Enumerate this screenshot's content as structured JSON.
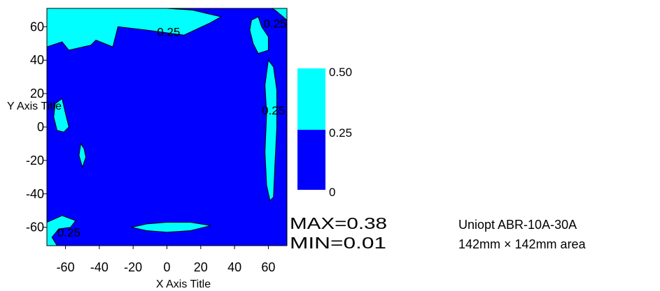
{
  "chart_data": {
    "type": "contour",
    "xlabel": "X Axis Title",
    "ylabel": "Y Axis Title",
    "xlim": [
      -71,
      71
    ],
    "ylim": [
      -71,
      71
    ],
    "x_ticks": [
      -60,
      -40,
      -20,
      0,
      20,
      40,
      60
    ],
    "y_ticks": [
      60,
      40,
      20,
      0,
      -20,
      -40,
      -60
    ],
    "x_tick_labels": [
      "-60",
      "-40",
      "-20",
      "0",
      "20",
      "40",
      "60"
    ],
    "y_tick_labels": [
      "60",
      "40",
      "20",
      "0",
      "-20",
      "-40",
      "-60"
    ],
    "levels": [
      0,
      0.25,
      0.5
    ],
    "level_colors": [
      "#0000ff",
      "#00ffff"
    ],
    "colorbar_labels": [
      "0.50",
      "0.25",
      "0"
    ],
    "contour_labels": [
      {
        "text": "0.25",
        "x": 1,
        "y": 57
      },
      {
        "text": "0.25",
        "x": 64,
        "y": 62
      },
      {
        "text": "0.25",
        "x": 63,
        "y": 10
      },
      {
        "text": "0.25",
        "x": -58,
        "y": -63
      }
    ],
    "regions_above_0_25": [
      {
        "name": "top-edge band",
        "points": [
          [
            -71,
            71
          ],
          [
            -71,
            48
          ],
          [
            -62,
            51
          ],
          [
            -58,
            46
          ],
          [
            -45,
            49
          ],
          [
            -42,
            52
          ],
          [
            -32,
            48
          ],
          [
            -29,
            60
          ],
          [
            -12,
            58
          ],
          [
            10,
            55
          ],
          [
            25,
            62
          ],
          [
            32,
            66
          ],
          [
            15,
            70
          ],
          [
            0,
            71
          ]
        ]
      },
      {
        "name": "top-right corner",
        "points": [
          [
            62,
            71
          ],
          [
            71,
            71
          ],
          [
            71,
            64
          ],
          [
            64,
            70
          ]
        ]
      },
      {
        "name": "upper-right island",
        "points": [
          [
            50,
            64
          ],
          [
            54,
            66
          ],
          [
            56,
            60
          ],
          [
            60,
            54
          ],
          [
            60,
            46
          ],
          [
            54,
            44
          ],
          [
            51,
            50
          ],
          [
            49,
            58
          ]
        ]
      },
      {
        "name": "right vertical island",
        "points": [
          [
            60,
            40
          ],
          [
            63,
            36
          ],
          [
            65,
            22
          ],
          [
            65,
            0
          ],
          [
            64,
            -20
          ],
          [
            63,
            -42
          ],
          [
            61,
            -44
          ],
          [
            59,
            -35
          ],
          [
            58,
            -15
          ],
          [
            59,
            8
          ],
          [
            58,
            25
          ]
        ]
      },
      {
        "name": "left island",
        "points": [
          [
            -66,
            14
          ],
          [
            -62,
            17
          ],
          [
            -60,
            8
          ],
          [
            -58,
            0
          ],
          [
            -61,
            -3
          ],
          [
            -65,
            -2
          ],
          [
            -67,
            6
          ]
        ]
      },
      {
        "name": "small left sliver",
        "points": [
          [
            -51,
            -10
          ],
          [
            -49,
            -13
          ],
          [
            -48,
            -18
          ],
          [
            -50,
            -24
          ],
          [
            -52,
            -17
          ]
        ]
      },
      {
        "name": "bottom horizontal island",
        "points": [
          [
            -21,
            -60
          ],
          [
            -12,
            -58
          ],
          [
            0,
            -57
          ],
          [
            14,
            -57
          ],
          [
            26,
            -59
          ],
          [
            14,
            -62
          ],
          [
            0,
            -63
          ],
          [
            -12,
            -62
          ]
        ]
      },
      {
        "name": "bottom-left island",
        "points": [
          [
            -71,
            -71
          ],
          [
            -71,
            -57
          ],
          [
            -62,
            -53
          ],
          [
            -54,
            -56
          ],
          [
            -57,
            -60
          ],
          [
            -64,
            -61
          ],
          [
            -68,
            -66
          ],
          [
            -65,
            -71
          ]
        ]
      }
    ],
    "max_label": "MAX=0.38",
    "min_label": "MIN=0.01"
  },
  "annotation": {
    "line1": "Uniopt ABR-10A-30A",
    "line2": "142mm × 142mm area"
  }
}
